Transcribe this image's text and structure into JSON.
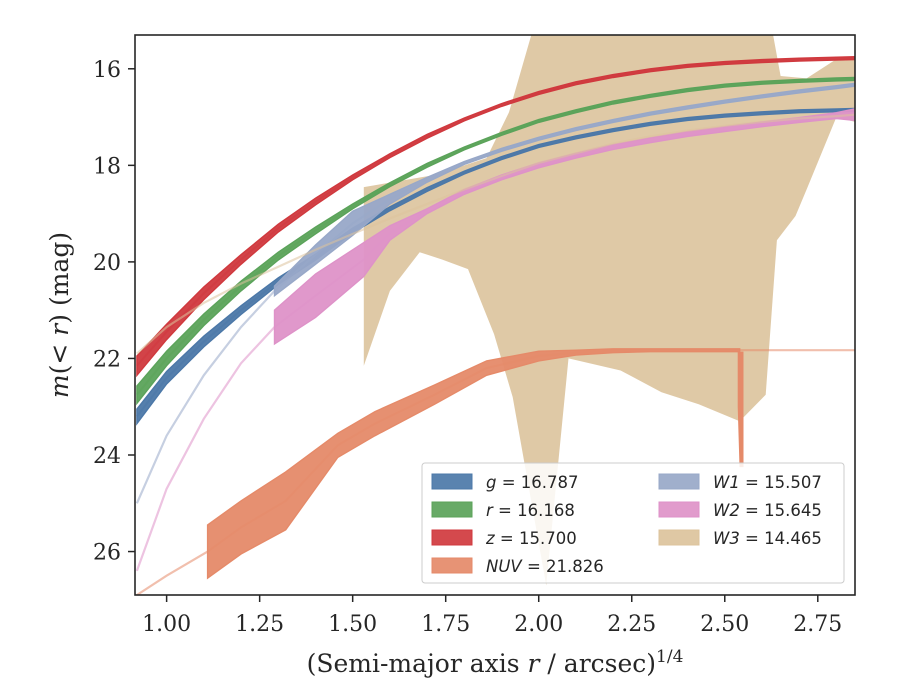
{
  "chart_data": {
    "type": "area",
    "xlabel": "(Semi-major axis r / arcsec)",
    "xlabel_var": "r",
    "xlabel_prefix": "(Semi-major axis ",
    "xlabel_suffix": " / arcsec)",
    "xlabel_superscript": "1/4",
    "ylabel": "m(< r) (mag)",
    "ylabel_m": "m",
    "ylabel_mid": "(< ",
    "ylabel_r": "r",
    "ylabel_end": ") (mag)",
    "xlim": [
      0.915,
      2.85
    ],
    "ylim": [
      26.9,
      15.3
    ],
    "y_inverted": true,
    "xticks": [
      1.0,
      1.25,
      1.5,
      1.75,
      2.0,
      2.25,
      2.5,
      2.75
    ],
    "xtick_labels": [
      "1.00",
      "1.25",
      "1.50",
      "1.75",
      "2.00",
      "2.25",
      "2.50",
      "2.75"
    ],
    "yticks": [
      16,
      18,
      20,
      22,
      24,
      26
    ],
    "ytick_labels": [
      "16",
      "18",
      "20",
      "22",
      "24",
      "26"
    ],
    "grid": false,
    "legend_placement": "lower-right",
    "series": [
      {
        "name": "g = 16.787",
        "band": "g",
        "mag": "16.787",
        "color": "#4c78a8",
        "x": [
          0.92,
          1.0,
          1.1,
          1.2,
          1.3,
          1.4,
          1.5,
          1.6,
          1.7,
          1.8,
          1.9,
          2.0,
          2.1,
          2.2,
          2.3,
          2.4,
          2.5,
          2.6,
          2.7,
          2.8,
          2.85
        ],
        "y": [
          23.2,
          22.4,
          21.65,
          21.0,
          20.4,
          19.9,
          19.35,
          18.9,
          18.5,
          18.15,
          17.85,
          17.6,
          17.42,
          17.27,
          17.14,
          17.04,
          16.97,
          16.92,
          16.88,
          16.86,
          16.85
        ],
        "width": [
          0.15,
          0.13,
          0.11,
          0.09,
          0.07,
          0.06,
          0.05,
          0.04,
          0.04,
          0.03,
          0.03,
          0.03,
          0.03,
          0.03,
          0.03,
          0.03,
          0.03,
          0.03,
          0.03,
          0.03,
          0.03
        ],
        "faint_until": 0.92
      },
      {
        "name": "r = 16.168",
        "band": "r",
        "mag": "16.168",
        "color": "#5ba35a",
        "x": [
          0.92,
          1.0,
          1.1,
          1.2,
          1.3,
          1.4,
          1.5,
          1.6,
          1.7,
          1.8,
          1.9,
          2.0,
          2.1,
          2.2,
          2.3,
          2.4,
          2.5,
          2.6,
          2.7,
          2.8,
          2.85
        ],
        "y": [
          22.75,
          22.0,
          21.2,
          20.5,
          19.88,
          19.35,
          18.85,
          18.4,
          18.0,
          17.65,
          17.35,
          17.08,
          16.88,
          16.7,
          16.56,
          16.44,
          16.35,
          16.29,
          16.25,
          16.22,
          16.21
        ],
        "width": [
          0.18,
          0.15,
          0.12,
          0.1,
          0.08,
          0.07,
          0.05,
          0.04,
          0.04,
          0.03,
          0.03,
          0.03,
          0.03,
          0.03,
          0.03,
          0.03,
          0.03,
          0.03,
          0.03,
          0.03,
          0.03
        ],
        "faint_until": 0.92
      },
      {
        "name": "z = 15.700",
        "band": "z",
        "mag": "15.700",
        "color": "#d0393e",
        "x": [
          0.92,
          1.0,
          1.1,
          1.2,
          1.3,
          1.4,
          1.5,
          1.6,
          1.7,
          1.8,
          1.9,
          2.0,
          2.1,
          2.2,
          2.3,
          2.4,
          2.5,
          2.6,
          2.7,
          2.8,
          2.85
        ],
        "y": [
          22.15,
          21.45,
          20.65,
          19.95,
          19.3,
          18.75,
          18.25,
          17.8,
          17.4,
          17.05,
          16.75,
          16.5,
          16.3,
          16.15,
          16.03,
          15.94,
          15.88,
          15.84,
          15.81,
          15.79,
          15.78
        ],
        "width": [
          0.2,
          0.16,
          0.13,
          0.1,
          0.08,
          0.07,
          0.05,
          0.04,
          0.04,
          0.03,
          0.03,
          0.03,
          0.03,
          0.03,
          0.03,
          0.03,
          0.03,
          0.03,
          0.03,
          0.03,
          0.03
        ],
        "faint_until": 0.92
      },
      {
        "name": "NUV = 21.826",
        "band": "NUV",
        "mag": "21.826",
        "color": "#e58a69",
        "x": [
          0.92,
          1.0,
          1.11,
          1.2,
          1.32,
          1.46,
          1.56,
          1.72,
          1.86,
          2.0,
          2.1,
          2.2,
          2.3,
          2.4,
          2.5,
          2.54,
          2.6,
          2.7,
          2.85
        ],
        "y": [
          26.9,
          26.5,
          26.0,
          25.5,
          24.95,
          23.8,
          23.35,
          22.75,
          22.2,
          21.95,
          21.88,
          21.84,
          21.83,
          21.83,
          21.83,
          21.83,
          21.83,
          21.83,
          21.83
        ],
        "width": [
          0.0,
          0.0,
          0.55,
          0.55,
          0.6,
          0.25,
          0.25,
          0.2,
          0.15,
          0.1,
          0.05,
          0.04,
          0.03,
          0.03,
          0.03,
          0.03,
          0.0,
          0.0,
          0.0
        ],
        "faint_until": 1.11,
        "faint_after": 2.54,
        "extra_band": {
          "x": [
            2.54,
            2.545
          ],
          "lo": [
            21.9,
            21.9
          ],
          "hi": [
            23.0,
            24.25
          ]
        }
      },
      {
        "name": "W1 = 15.507",
        "band": "W1",
        "mag": "15.507",
        "color": "#98a8c8",
        "x": [
          0.92,
          1.0,
          1.1,
          1.2,
          1.29,
          1.4,
          1.5,
          1.6,
          1.7,
          1.8,
          1.9,
          2.0,
          2.1,
          2.2,
          2.3,
          2.4,
          2.5,
          2.6,
          2.7,
          2.8,
          2.85
        ],
        "y": [
          25.0,
          23.6,
          22.35,
          21.35,
          20.6,
          19.85,
          19.2,
          18.7,
          18.3,
          17.95,
          17.68,
          17.45,
          17.25,
          17.08,
          16.93,
          16.8,
          16.68,
          16.57,
          16.47,
          16.38,
          16.33
        ],
        "width": [
          0.0,
          0.0,
          0.0,
          0.0,
          0.1,
          0.2,
          0.25,
          0.1,
          0.05,
          0.03,
          0.03,
          0.03,
          0.03,
          0.03,
          0.03,
          0.03,
          0.03,
          0.03,
          0.03,
          0.03,
          0.03
        ],
        "faint_until": 1.29
      },
      {
        "name": "W2 = 15.645",
        "band": "W2",
        "mag": "15.645",
        "color": "#de92c8",
        "x": [
          0.92,
          1.0,
          1.1,
          1.2,
          1.29,
          1.4,
          1.53,
          1.6,
          1.7,
          1.8,
          1.9,
          2.0,
          2.1,
          2.2,
          2.3,
          2.4,
          2.5,
          2.6,
          2.7,
          2.8,
          2.85
        ],
        "y": [
          26.4,
          24.7,
          23.25,
          22.1,
          21.35,
          20.7,
          19.95,
          19.4,
          18.95,
          18.55,
          18.25,
          18.0,
          17.8,
          17.62,
          17.48,
          17.35,
          17.25,
          17.15,
          17.06,
          16.97,
          16.95
        ],
        "width": [
          0.0,
          0.0,
          0.0,
          0.0,
          0.35,
          0.45,
          0.35,
          0.15,
          0.05,
          0.05,
          0.05,
          0.05,
          0.05,
          0.05,
          0.05,
          0.05,
          0.05,
          0.05,
          0.05,
          0.06,
          0.12
        ],
        "faint_until": 1.29
      },
      {
        "name": "W3 = 14.465",
        "band": "W3",
        "mag": "14.465",
        "color": "#dcc39c",
        "x": [
          0.92,
          1.0,
          1.1,
          1.2,
          1.3,
          1.4,
          1.5,
          1.6,
          1.7,
          1.8,
          1.9,
          2.0,
          2.1,
          2.2,
          2.3,
          2.4,
          2.5,
          2.6,
          2.7,
          2.8,
          2.85
        ],
        "y": [
          21.9,
          21.35,
          20.85,
          20.45,
          20.1,
          19.75,
          19.42,
          19.1,
          18.8,
          18.5,
          18.22,
          17.95,
          17.75,
          17.55,
          17.4,
          17.28,
          17.18,
          17.1,
          17.03,
          16.98,
          16.95
        ],
        "faint_until": 1.53,
        "band_polygon": {
          "upper": [
            [
              1.53,
              18.45
            ],
            [
              1.72,
              18.2
            ],
            [
              1.86,
              17.85
            ],
            [
              1.92,
              16.9
            ],
            [
              1.98,
              15.3
            ],
            [
              2.63,
              15.3
            ],
            [
              2.65,
              16.15
            ],
            [
              2.72,
              16.2
            ],
            [
              2.8,
              15.8
            ],
            [
              2.85,
              15.75
            ]
          ],
          "lower": [
            [
              2.85,
              17.1
            ],
            [
              2.8,
              17.0
            ],
            [
              2.72,
              18.5
            ],
            [
              2.69,
              19.05
            ],
            [
              2.64,
              19.55
            ],
            [
              2.61,
              22.75
            ],
            [
              2.54,
              23.3
            ],
            [
              2.43,
              22.95
            ],
            [
              2.33,
              22.7
            ],
            [
              2.22,
              22.25
            ],
            [
              2.08,
              22.0
            ],
            [
              2.02,
              26.7
            ],
            [
              1.93,
              22.8
            ],
            [
              1.88,
              21.5
            ],
            [
              1.81,
              20.15
            ],
            [
              1.74,
              19.95
            ],
            [
              1.68,
              19.8
            ],
            [
              1.6,
              20.6
            ],
            [
              1.53,
              22.15
            ]
          ]
        }
      }
    ],
    "legend": {
      "left": [
        {
          "band": "g",
          "value": " = 16.787",
          "color": "#4c78a8"
        },
        {
          "band": "r",
          "value": " = 16.168",
          "color": "#5ba35a"
        },
        {
          "band": "z",
          "value": " = 15.700",
          "color": "#d0393e"
        },
        {
          "band": "NUV",
          "value": " = 21.826",
          "color": "#e58a69"
        }
      ],
      "right": [
        {
          "band": "W1",
          "value": " = 15.507",
          "color": "#98a8c8"
        },
        {
          "band": "W2",
          "value": " = 15.645",
          "color": "#de92c8"
        },
        {
          "band": "W3",
          "value": " = 14.465",
          "color": "#dcc39c"
        }
      ]
    }
  }
}
